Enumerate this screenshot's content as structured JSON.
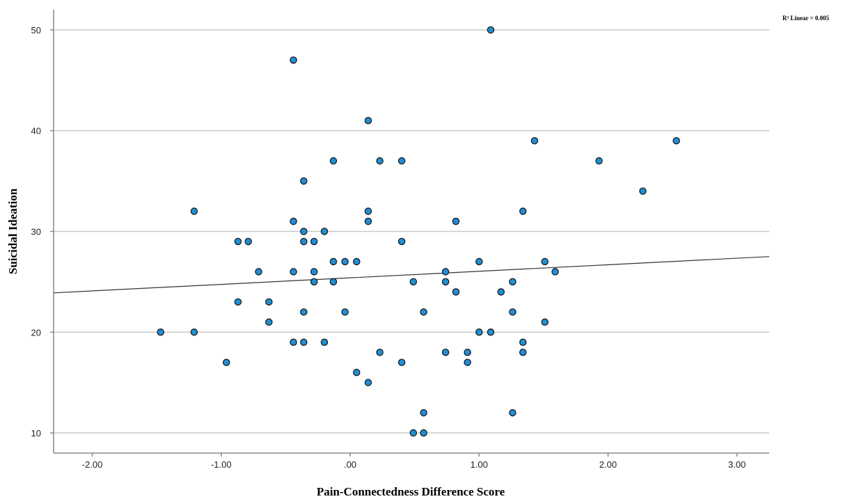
{
  "chart_data": {
    "type": "scatter",
    "xlabel": "Pain-Connectedness Difference Score",
    "ylabel": "Suicidal Ideation",
    "xlim": [
      -2.3,
      3.25
    ],
    "ylim": [
      8,
      52
    ],
    "x_ticks": [
      -2,
      -1,
      0,
      1,
      2,
      3
    ],
    "x_tick_labels": [
      "-2.00",
      "-1.00",
      ".00",
      "1.00",
      "2.00",
      "3.00"
    ],
    "y_ticks": [
      10,
      20,
      30,
      40,
      50
    ],
    "y_tick_labels": [
      "10",
      "20",
      "30",
      "40",
      "50"
    ],
    "grid": "horizontal",
    "fit_line": {
      "label": "R² Linear = 0.005",
      "x": [
        -2.3,
        3.25
      ],
      "y": [
        23.9,
        27.5
      ]
    },
    "colors": {
      "marker_fill": "#1f8fd6",
      "marker_edge": "#1a1a1a",
      "grid": "#c8c8c8",
      "fit_line": "#333333",
      "axis": "#888888"
    },
    "points": [
      [
        1.09,
        50
      ],
      [
        -0.44,
        47
      ],
      [
        0.14,
        41
      ],
      [
        1.43,
        39
      ],
      [
        2.53,
        39
      ],
      [
        -0.13,
        37
      ],
      [
        0.23,
        37
      ],
      [
        0.4,
        37
      ],
      [
        1.93,
        37
      ],
      [
        -0.36,
        35
      ],
      [
        2.27,
        34
      ],
      [
        -1.21,
        32
      ],
      [
        0.14,
        32
      ],
      [
        1.34,
        32
      ],
      [
        -0.44,
        31
      ],
      [
        0.14,
        31
      ],
      [
        0.82,
        31
      ],
      [
        -0.36,
        30
      ],
      [
        -0.2,
        30
      ],
      [
        -0.87,
        29
      ],
      [
        -0.79,
        29
      ],
      [
        -0.36,
        29
      ],
      [
        -0.28,
        29
      ],
      [
        0.4,
        29
      ],
      [
        -0.13,
        27
      ],
      [
        -0.04,
        27
      ],
      [
        0.05,
        27
      ],
      [
        1.0,
        27
      ],
      [
        1.51,
        27
      ],
      [
        -0.71,
        26
      ],
      [
        -0.44,
        26
      ],
      [
        -0.28,
        26
      ],
      [
        0.74,
        26
      ],
      [
        1.59,
        26
      ],
      [
        -0.28,
        25
      ],
      [
        -0.13,
        25
      ],
      [
        0.49,
        25
      ],
      [
        0.74,
        25
      ],
      [
        1.26,
        25
      ],
      [
        0.82,
        24
      ],
      [
        1.17,
        24
      ],
      [
        -0.87,
        23
      ],
      [
        -0.63,
        23
      ],
      [
        -0.36,
        22
      ],
      [
        -0.04,
        22
      ],
      [
        0.57,
        22
      ],
      [
        1.26,
        22
      ],
      [
        -0.63,
        21
      ],
      [
        1.51,
        21
      ],
      [
        -1.47,
        20
      ],
      [
        -1.21,
        20
      ],
      [
        1.0,
        20
      ],
      [
        1.09,
        20
      ],
      [
        -0.44,
        19
      ],
      [
        -0.36,
        19
      ],
      [
        -0.2,
        19
      ],
      [
        1.34,
        19
      ],
      [
        0.23,
        18
      ],
      [
        0.74,
        18
      ],
      [
        0.91,
        18
      ],
      [
        1.34,
        18
      ],
      [
        -0.96,
        17
      ],
      [
        0.4,
        17
      ],
      [
        0.91,
        17
      ],
      [
        0.05,
        16
      ],
      [
        0.14,
        15
      ],
      [
        0.57,
        12
      ],
      [
        1.26,
        12
      ],
      [
        0.49,
        10
      ],
      [
        0.57,
        10
      ]
    ]
  }
}
